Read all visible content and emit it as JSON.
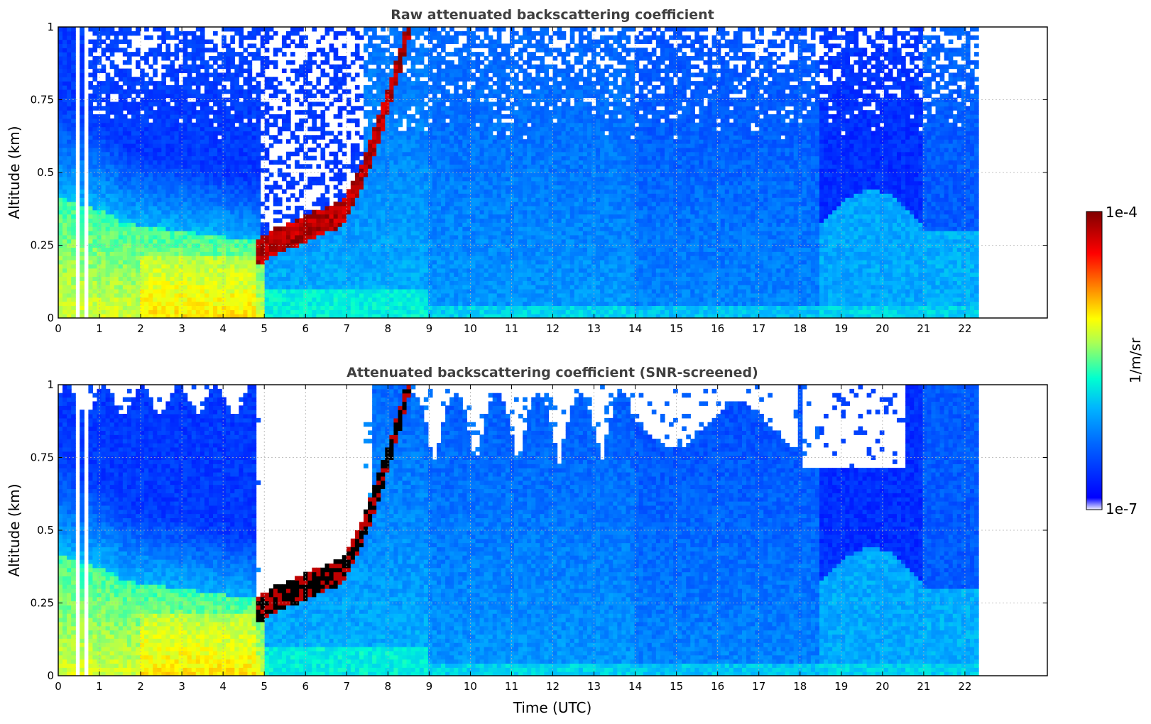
{
  "chart_data": [
    {
      "type": "heatmap",
      "title": "Raw attenuated backscattering coefficient",
      "xlabel": "",
      "ylabel": "Altitude (km)",
      "xlim": [
        0,
        24
      ],
      "ylim": [
        0,
        1
      ],
      "x_ticks": [
        "0",
        "1",
        "2",
        "3",
        "4",
        "5",
        "6",
        "7",
        "8",
        "9",
        "10",
        "11",
        "12",
        "13",
        "14",
        "15",
        "16",
        "17",
        "18",
        "19",
        "20",
        "21",
        "22"
      ],
      "y_ticks": [
        "0",
        "0.25",
        "0.5",
        "0.75",
        "1"
      ],
      "data_time_range_utc": [
        0,
        22.3
      ],
      "grid": true,
      "colorscale": "jet",
      "log_scale": true,
      "value_range": [
        1e-07,
        0.0001
      ],
      "features": {
        "aerosol_layer_top_km": 0.3,
        "cloud_layer_time_utc": [
          4.8,
          8.6
        ],
        "cloud_base_altitude_km": [
          0.17,
          0.35
        ]
      }
    },
    {
      "type": "heatmap",
      "title": "Attenuated backscattering coefficient (SNR-screened)",
      "xlabel": "Time (UTC)",
      "ylabel": "Altitude (km)",
      "xlim": [
        0,
        24
      ],
      "ylim": [
        0,
        1
      ],
      "x_ticks": [
        "0",
        "1",
        "2",
        "3",
        "4",
        "5",
        "6",
        "7",
        "8",
        "9",
        "10",
        "11",
        "12",
        "13",
        "14",
        "15",
        "16",
        "17",
        "18",
        "19",
        "20",
        "21",
        "22"
      ],
      "y_ticks": [
        "0",
        "0.25",
        "0.5",
        "0.75",
        "1"
      ],
      "data_time_range_utc": [
        0,
        22.3
      ],
      "grid": true,
      "colorscale": "jet",
      "log_scale": true,
      "value_range": [
        1e-07,
        0.0001
      ],
      "features": {
        "screened_regions": "low-SNR pixels removed (white)"
      }
    }
  ],
  "colorbar": {
    "max_label": "1e-4",
    "min_label": "1e-7",
    "label": "1/m/sr",
    "scale": "log",
    "colors_low_to_high": [
      "#eeeeff",
      "#0000ff",
      "#00b4ff",
      "#00ffd0",
      "#aaff55",
      "#ffff00",
      "#ff8000",
      "#ff0000",
      "#800000"
    ]
  }
}
